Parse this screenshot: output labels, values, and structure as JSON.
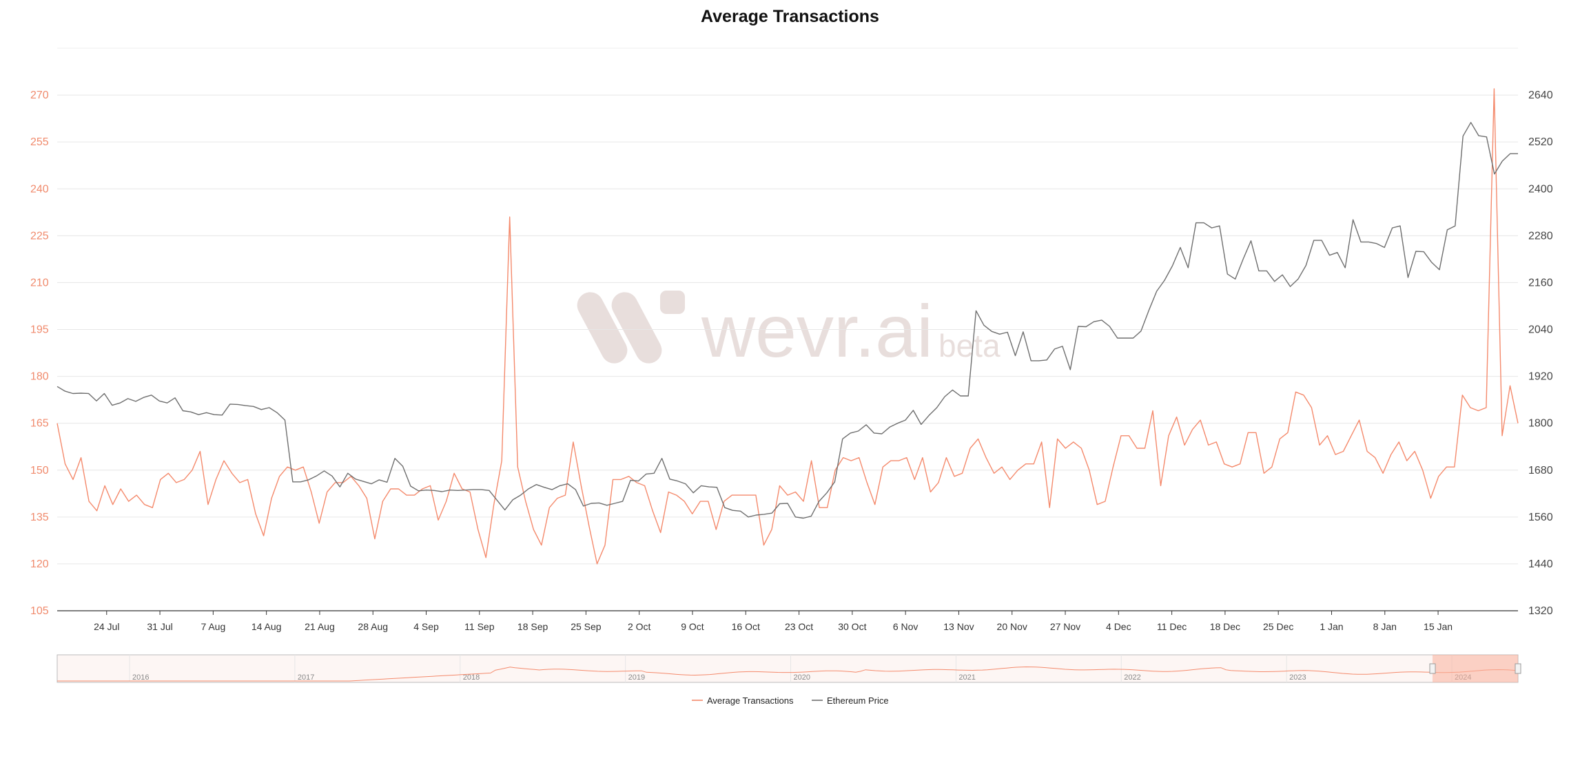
{
  "chart_data": {
    "type": "line",
    "title": "Average Transactions",
    "x_tick_labels": [
      "24 Jul",
      "31 Jul",
      "7 Aug",
      "14 Aug",
      "21 Aug",
      "28 Aug",
      "4 Sep",
      "11 Sep",
      "18 Sep",
      "25 Sep",
      "2 Oct",
      "9 Oct",
      "16 Oct",
      "23 Oct",
      "30 Oct",
      "6 Nov",
      "13 Nov",
      "20 Nov",
      "27 Nov",
      "4 Dec",
      "11 Dec",
      "18 Dec",
      "25 Dec",
      "1 Jan",
      "8 Jan",
      "15 Jan"
    ],
    "x_range_days": [
      -6.5,
      185.5
    ],
    "y_left": {
      "ticks": [
        105,
        120,
        135,
        150,
        165,
        180,
        195,
        210,
        225,
        240,
        255,
        270
      ],
      "range": [
        105,
        285
      ]
    },
    "y_right": {
      "ticks": [
        1320,
        1440,
        1560,
        1680,
        1800,
        1920,
        2040,
        2160,
        2280,
        2400,
        2520,
        2640
      ],
      "range": [
        1320,
        2760
      ]
    },
    "grid": true,
    "legend_position": "bottom-center",
    "navigator": {
      "year_labels": [
        "2016",
        "2017",
        "2018",
        "2019",
        "2020",
        "2021",
        "2022",
        "2023",
        "2024"
      ]
    },
    "watermark": {
      "text": "wevr.ai",
      "suffix": "beta"
    },
    "series": [
      {
        "name": "Average Transactions",
        "color": "#f4896b",
        "axis": "left",
        "values": [
          165,
          152,
          147,
          154,
          140,
          137,
          145,
          139,
          144,
          140,
          142,
          139,
          138,
          147,
          149,
          146,
          147,
          150,
          156,
          139,
          147,
          153,
          149,
          146,
          147,
          136,
          129,
          141,
          148,
          151,
          150,
          151,
          143,
          133,
          143,
          146,
          146,
          148,
          145,
          141,
          128,
          140,
          144,
          144,
          142,
          142,
          144,
          145,
          134,
          140,
          149,
          144,
          143,
          131,
          122,
          139,
          153,
          231,
          151,
          140,
          131,
          126,
          138,
          141,
          142,
          159,
          145,
          132,
          120,
          126,
          147,
          147,
          148,
          146,
          145,
          137,
          130,
          143,
          142,
          140,
          136,
          140,
          140,
          131,
          140,
          142,
          142,
          142,
          142,
          126,
          131,
          145,
          142,
          143,
          140,
          153,
          138,
          138,
          150,
          154,
          153,
          154,
          146,
          139,
          151,
          153,
          153,
          154,
          147,
          154,
          143,
          146,
          154,
          148,
          149,
          157,
          160,
          154,
          149,
          151,
          147,
          150,
          152,
          152,
          159,
          138,
          160,
          157,
          159,
          157,
          150,
          139,
          140,
          151,
          161,
          161,
          157,
          157,
          169,
          145,
          161,
          167,
          158,
          163,
          166,
          158,
          159,
          152,
          151,
          152,
          162,
          162,
          149,
          151,
          160,
          162,
          175,
          174,
          170,
          158,
          161,
          155,
          156,
          161,
          166,
          156,
          154,
          149,
          155,
          159,
          153,
          156,
          150,
          141,
          148,
          151,
          151,
          174,
          170,
          169,
          170,
          272,
          161,
          177,
          165
        ]
      },
      {
        "name": "Ethereum Price",
        "color": "#6e6e6e",
        "axis": "right",
        "values": [
          1894,
          1882,
          1876,
          1877,
          1876,
          1857,
          1876,
          1846,
          1852,
          1863,
          1856,
          1866,
          1872,
          1857,
          1852,
          1865,
          1832,
          1829,
          1822,
          1827,
          1822,
          1821,
          1849,
          1848,
          1845,
          1843,
          1835,
          1840,
          1827,
          1808,
          1650,
          1650,
          1655,
          1665,
          1678,
          1665,
          1637,
          1672,
          1657,
          1651,
          1645,
          1655,
          1649,
          1710,
          1690,
          1639,
          1627,
          1629,
          1628,
          1625,
          1629,
          1628,
          1629,
          1630,
          1630,
          1628,
          1603,
          1578,
          1604,
          1616,
          1632,
          1643,
          1636,
          1630,
          1640,
          1645,
          1630,
          1588,
          1595,
          1596,
          1590,
          1595,
          1600,
          1654,
          1652,
          1670,
          1672,
          1710,
          1657,
          1652,
          1645,
          1622,
          1640,
          1637,
          1636,
          1584,
          1577,
          1575,
          1560,
          1565,
          1567,
          1570,
          1594,
          1595,
          1560,
          1557,
          1562,
          1600,
          1622,
          1650,
          1760,
          1775,
          1780,
          1796,
          1775,
          1773,
          1790,
          1800,
          1808,
          1833,
          1797,
          1820,
          1840,
          1868,
          1885,
          1870,
          1870,
          2088,
          2051,
          2035,
          2028,
          2033,
          1973,
          2034,
          1960,
          1960,
          1962,
          1990,
          1997,
          1937,
          2048,
          2047,
          2060,
          2064,
          2048,
          2018,
          2018,
          2018,
          2036,
          2089,
          2138,
          2166,
          2203,
          2250,
          2198,
          2313,
          2313,
          2300,
          2305,
          2182,
          2169,
          2220,
          2267,
          2190,
          2190,
          2163,
          2180,
          2150,
          2169,
          2204,
          2268,
          2268,
          2230,
          2237,
          2198,
          2321,
          2264,
          2264,
          2260,
          2250,
          2300,
          2305,
          2173,
          2240,
          2239,
          2212,
          2193,
          2295,
          2305,
          2535,
          2570,
          2536,
          2533,
          2438,
          2471,
          2490,
          2490
        ]
      }
    ]
  }
}
